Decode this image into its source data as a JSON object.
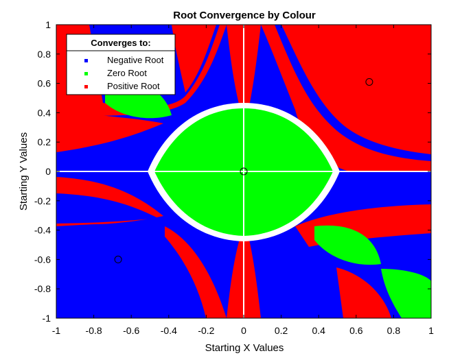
{
  "chart_data": {
    "type": "heatmap",
    "title": "Root Convergence by Colour",
    "xlabel": "Starting X Values",
    "ylabel": "Starting Y Values",
    "xlim": [
      -1,
      1
    ],
    "ylim": [
      -1,
      1
    ],
    "xticks": [
      -1,
      -0.8,
      -0.6,
      -0.4,
      -0.2,
      0,
      0.2,
      0.4,
      0.6,
      0.8,
      1
    ],
    "yticks": [
      1,
      0.8,
      0.6,
      0.4,
      0.2,
      0,
      -0.2,
      -0.4,
      -0.6,
      -0.8,
      -1
    ],
    "xtick_labels": [
      "-1",
      "-0.8",
      "-0.6",
      "-0.4",
      "-0.2",
      "0",
      "0.2",
      "0.4",
      "0.6",
      "0.8",
      "1"
    ],
    "ytick_labels": [
      "1",
      "0.8",
      "0.6",
      "0.4",
      "0.2",
      "0",
      "-0.2",
      "-0.4",
      "-0.6",
      "-0.8",
      "-1"
    ],
    "legend": {
      "title": "Converges to:",
      "position": "top-left",
      "entries": [
        {
          "label": "Negative Root",
          "color": "#0000ff"
        },
        {
          "label": "Zero Root",
          "color": "#00ff00"
        },
        {
          "label": "Positive Root",
          "color": "#ff0000"
        }
      ]
    },
    "roots": [
      {
        "name": "Negative Root",
        "x": -0.67,
        "y": -0.6
      },
      {
        "name": "Zero Root",
        "x": 0,
        "y": 0
      },
      {
        "name": "Positive Root",
        "x": 0.67,
        "y": 0.61
      }
    ],
    "regions": {
      "background_negative_color": "#0000ff",
      "background_positive_color": "#ff0000",
      "zero_basin_color": "#00ff00",
      "boundary_color": "#ffffff"
    }
  }
}
